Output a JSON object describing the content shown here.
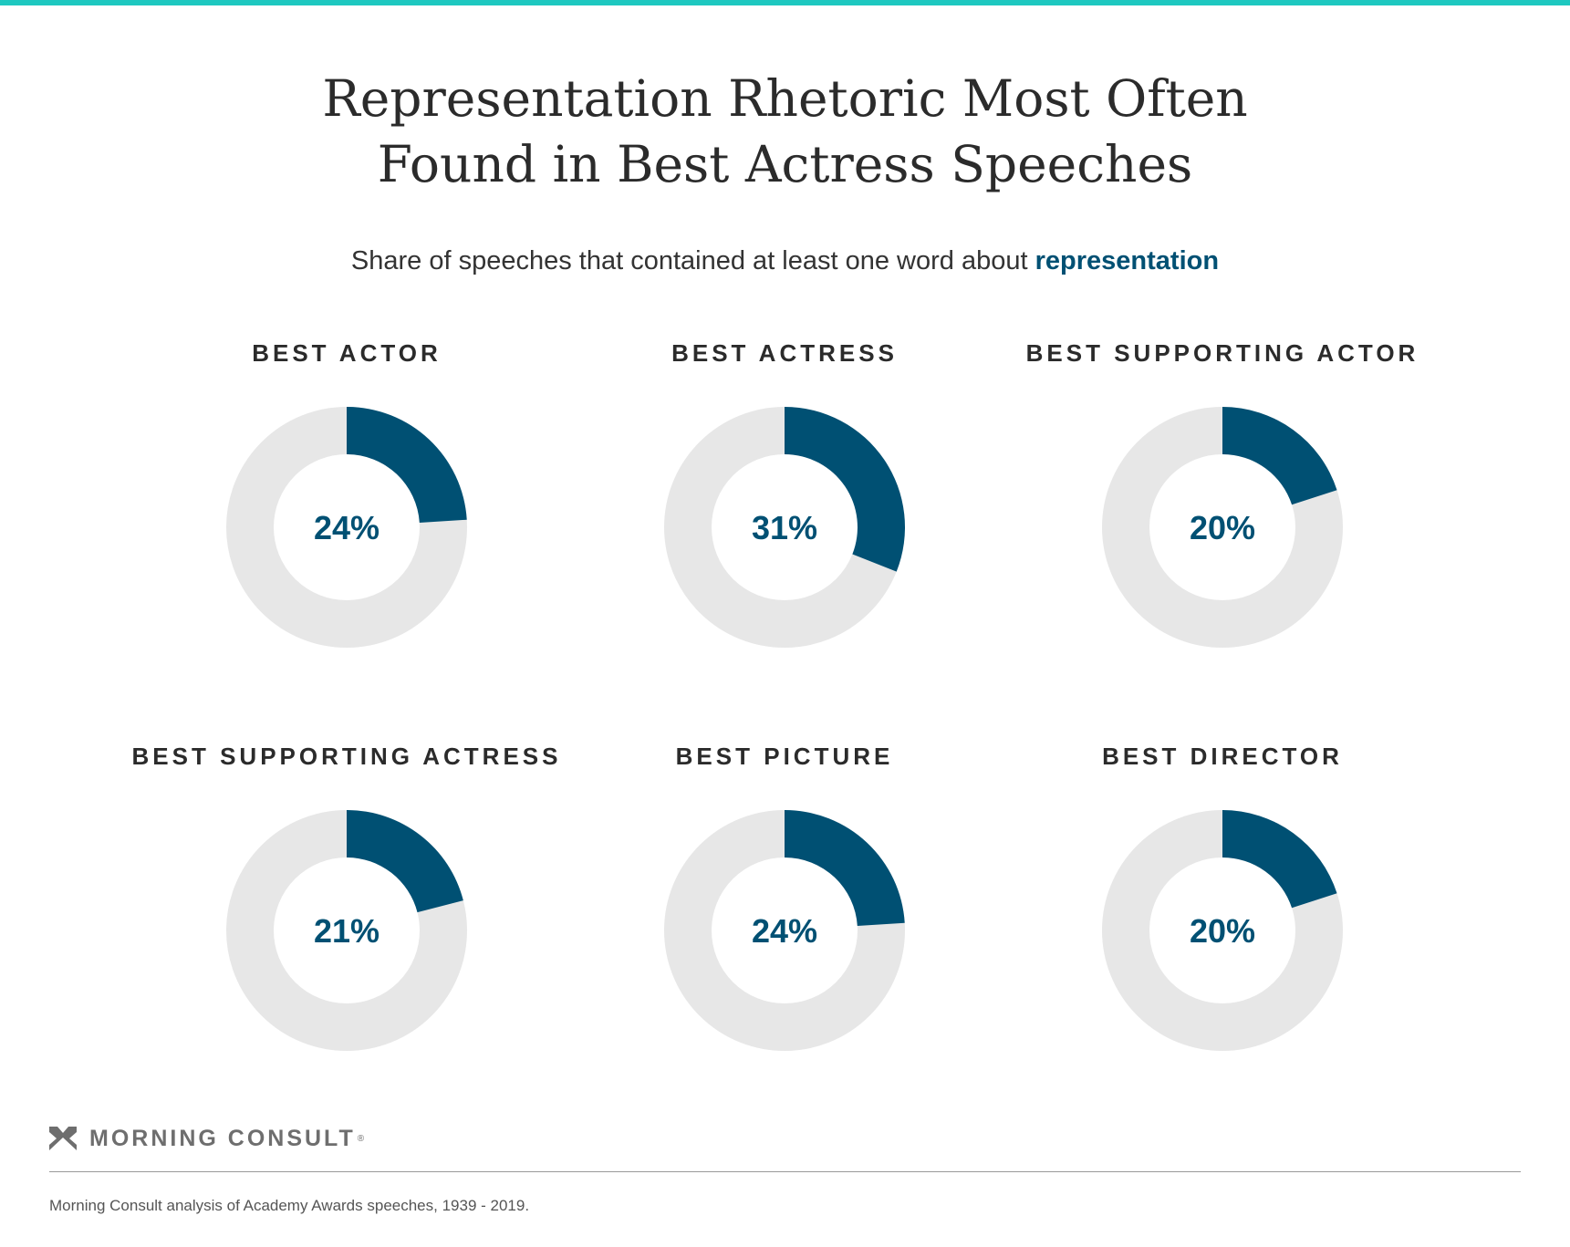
{
  "colors": {
    "accent": "#005073",
    "remainder": "#e7e7e7",
    "top_bar": "#1ec8c0",
    "text": "#2b2b2b",
    "logo": "#6e6e6e"
  },
  "title_lines": [
    "Representation Rhetoric Most Often",
    "Found in Best Actress Speeches"
  ],
  "subtitle": {
    "prefix": "Share of speeches that contained at least one word about ",
    "highlight": "representation"
  },
  "chart_data": {
    "type": "pie",
    "variant": "donut",
    "unit": "%",
    "categories": [
      "BEST ACTOR",
      "BEST ACTRESS",
      "BEST SUPPORTING ACTOR",
      "BEST SUPPORTING ACTRESS",
      "BEST PICTURE",
      "BEST DIRECTOR"
    ],
    "values": [
      24,
      31,
      20,
      21,
      24,
      20
    ],
    "labels": [
      "24%",
      "31%",
      "20%",
      "21%",
      "24%",
      "20%"
    ]
  },
  "logo": {
    "name": "MORNING CONSULT",
    "icon": "morning-consult-m-logo",
    "reg": "®"
  },
  "source": "Morning Consult analysis of Academy Awards speeches, 1939 - 2019."
}
